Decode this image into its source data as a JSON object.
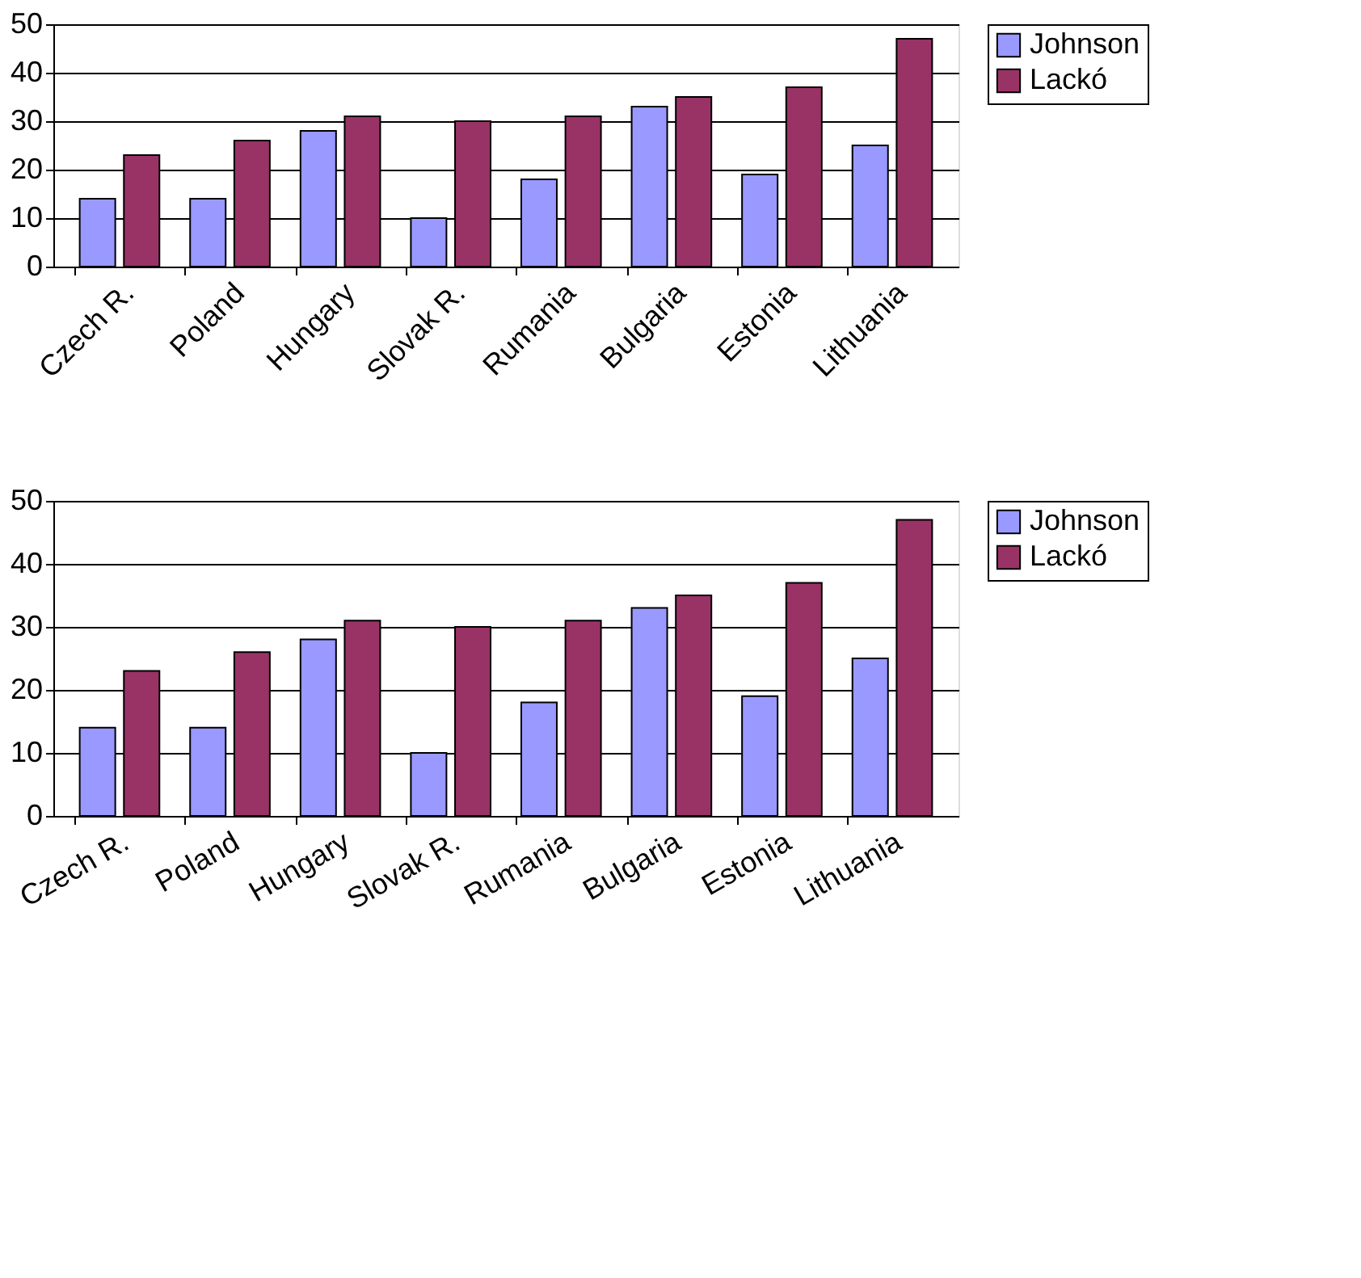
{
  "chart_data": [
    {
      "type": "bar",
      "categories": [
        "Czech R.",
        "Poland",
        "Hungary",
        "Slovak R.",
        "Rumania",
        "Bulgaria",
        "Estonia",
        "Lithuania"
      ],
      "series": [
        {
          "name": "Johnson",
          "color": "#9999ff",
          "values": [
            14,
            14,
            28,
            10,
            18,
            33,
            19,
            25
          ]
        },
        {
          "name": "Lackó",
          "color": "#993366",
          "values": [
            23,
            26,
            31,
            30,
            31,
            35,
            37,
            47
          ]
        }
      ],
      "ylim": [
        0,
        50
      ],
      "yticks": [
        0,
        10,
        20,
        30,
        40,
        50
      ],
      "grid": "y",
      "legend": "right"
    },
    {
      "type": "bar",
      "categories": [
        "Czech R.",
        "Poland",
        "Hungary",
        "Slovak R.",
        "Rumania",
        "Bulgaria",
        "Estonia",
        "Lithuania"
      ],
      "series": [
        {
          "name": "Johnson",
          "color": "#9999ff",
          "values": [
            14,
            14,
            28,
            10,
            18,
            33,
            19,
            25
          ]
        },
        {
          "name": "Lackó",
          "color": "#993366",
          "values": [
            23,
            26,
            31,
            30,
            31,
            35,
            37,
            47
          ]
        }
      ],
      "ylim": [
        0,
        50
      ],
      "yticks": [
        0,
        10,
        20,
        30,
        40,
        50
      ],
      "grid": "y",
      "legend": "right"
    }
  ]
}
